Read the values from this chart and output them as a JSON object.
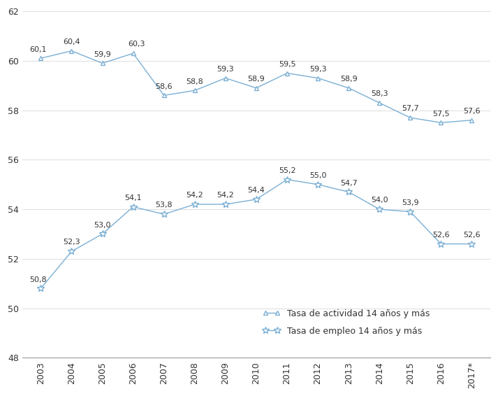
{
  "years": [
    "2003",
    "2004",
    "2005",
    "2006",
    "2007",
    "2008",
    "2009",
    "2010",
    "2011",
    "2012",
    "2013",
    "2014",
    "2015",
    "2016",
    "2017*"
  ],
  "actividad": [
    60.1,
    60.4,
    59.9,
    60.3,
    58.6,
    58.8,
    59.3,
    58.9,
    59.5,
    59.3,
    58.9,
    58.3,
    57.7,
    57.5,
    57.6
  ],
  "empleo": [
    50.8,
    52.3,
    53.0,
    54.1,
    53.8,
    54.2,
    54.2,
    54.4,
    55.2,
    55.0,
    54.7,
    54.0,
    53.9,
    52.6,
    52.6
  ],
  "actividad_label": "Tasa de actividad 14 años y más",
  "empleo_label": "Tasa de empleo 14 años y más",
  "ylim": [
    48,
    62
  ],
  "yticks": [
    48,
    50,
    52,
    54,
    56,
    58,
    60,
    62
  ],
  "line_color": "#7bafd4",
  "marker_actividad": "^",
  "marker_empleo": "*",
  "bg_color": "#ffffff",
  "annotation_fontsize": 8,
  "tick_fontsize": 9
}
